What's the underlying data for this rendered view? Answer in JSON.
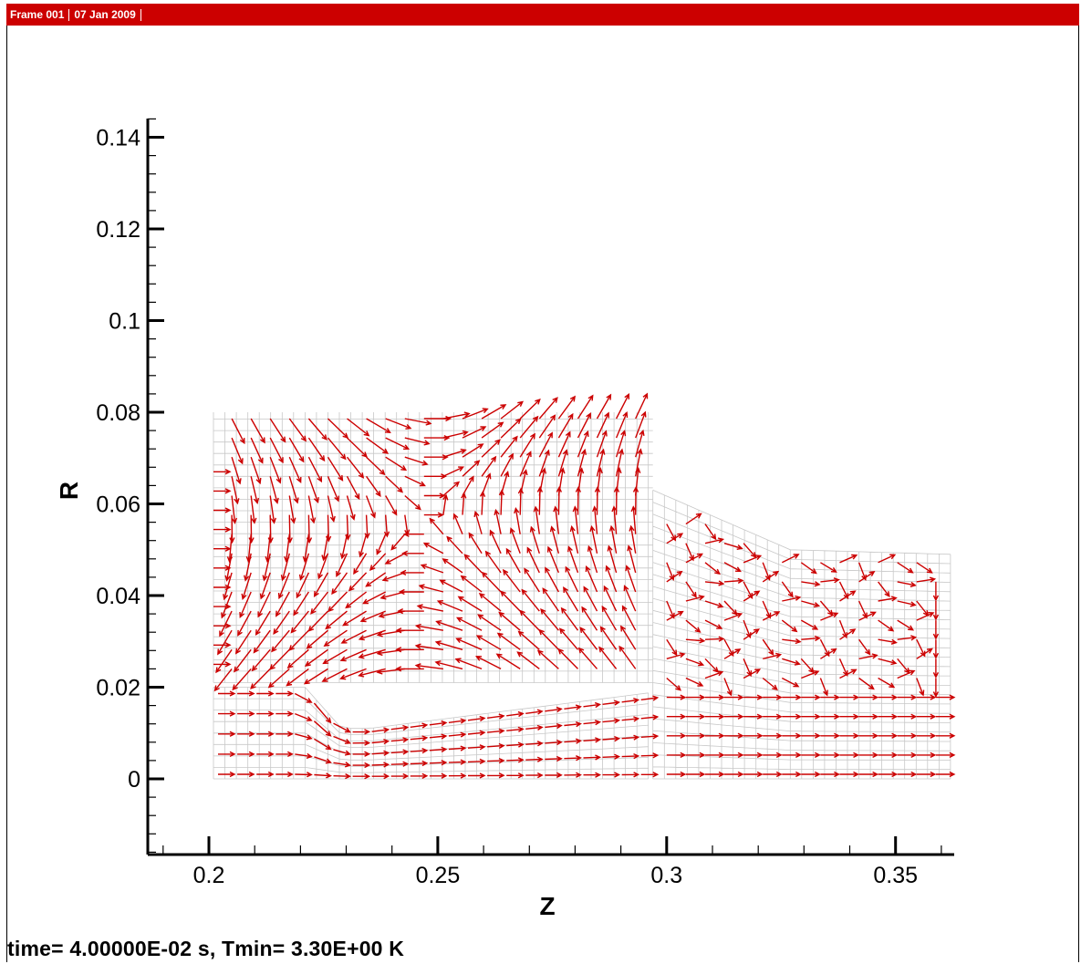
{
  "header": {
    "frame_label": "Frame 001",
    "date_label": "07 Jan 2009"
  },
  "footer_text": "time= 4.00000E-02 s, Tmin= 3.30E+00 K",
  "colors": {
    "header_bg": "#cc0000",
    "vector": "#cc0000",
    "mesh": "#c8c8c8",
    "axis": "#000000"
  },
  "chart_data": {
    "type": "vector-field",
    "title": "",
    "xlabel": "Z",
    "ylabel": "R",
    "xlim": [
      0.188,
      0.363
    ],
    "ylim": [
      -0.017,
      0.145
    ],
    "x_ticks": [
      "0.2",
      "0.25",
      "0.3",
      "0.35"
    ],
    "x_tick_values": [
      0.2,
      0.25,
      0.3,
      0.35
    ],
    "y_ticks": [
      "0",
      "0.02",
      "0.04",
      "0.06",
      "0.08",
      "0.1",
      "0.12",
      "0.14"
    ],
    "y_tick_values": [
      0,
      0.02,
      0.04,
      0.06,
      0.08,
      0.1,
      0.12,
      0.14
    ],
    "grid": false,
    "vortex_center": [
      0.247,
      0.057
    ],
    "domain": {
      "upper_cavity": {
        "z": [
          0.201,
          0.297
        ],
        "r": [
          0.021,
          0.08
        ]
      },
      "lower_channel": {
        "z": [
          0.201,
          0.3
        ],
        "r": [
          0.0,
          0.02
        ]
      },
      "outlet": {
        "z": [
          0.297,
          0.362
        ],
        "r_top_start": 0.063,
        "r_top_knee": [
          0.327,
          0.05
        ],
        "r_top_end": 0.049
      }
    }
  }
}
